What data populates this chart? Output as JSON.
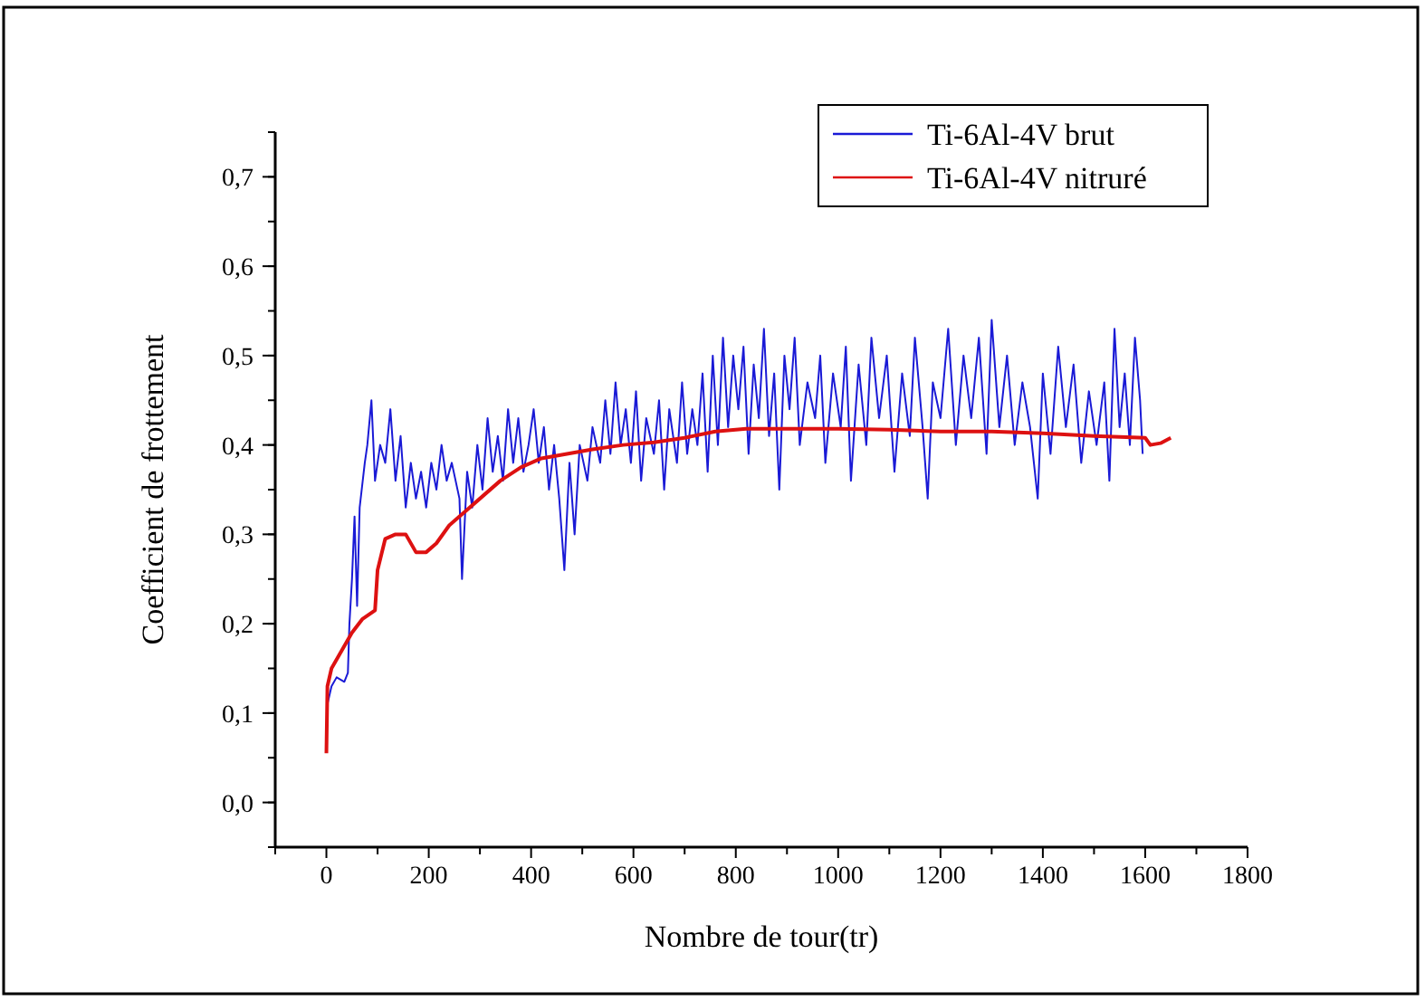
{
  "chart_data": {
    "type": "line",
    "xlabel": "Nombre de tour(tr)",
    "ylabel": "Coefficient de frottement",
    "xlim": [
      -100,
      1800
    ],
    "ylim": [
      -0.05,
      0.75
    ],
    "xticks": [
      {
        "value": -100,
        "label": null
      },
      0,
      {
        "value": 100,
        "label": null
      },
      200,
      {
        "value": 300,
        "label": null
      },
      400,
      {
        "value": 500,
        "label": null
      },
      600,
      {
        "value": 700,
        "label": null
      },
      800,
      {
        "value": 900,
        "label": null
      },
      1000,
      {
        "value": 1100,
        "label": null
      },
      1200,
      {
        "value": 1300,
        "label": null
      },
      1400,
      {
        "value": 1500,
        "label": null
      },
      1600,
      {
        "value": 1700,
        "label": null
      },
      1800
    ],
    "yticks": [
      {
        "value": 0,
        "label": "0,0"
      },
      {
        "value": 0.1,
        "label": "0,1"
      },
      {
        "value": 0.2,
        "label": "0,2"
      },
      {
        "value": 0.3,
        "label": "0,3"
      },
      {
        "value": 0.4,
        "label": "0,4"
      },
      {
        "value": 0.5,
        "label": "0,5"
      },
      {
        "value": 0.6,
        "label": "0,6"
      },
      {
        "value": 0.7,
        "label": "0,7"
      }
    ],
    "grid": false,
    "legend": "top right",
    "line_style": "solid",
    "marker": "none",
    "series": [
      {
        "name": "Ti-6Al-4V brut",
        "color": "#1a1ad6",
        "x": [
          2,
          10,
          20,
          35,
          42,
          45,
          50,
          55,
          60,
          65,
          75,
          80,
          88,
          95,
          105,
          115,
          125,
          135,
          145,
          155,
          165,
          175,
          185,
          195,
          205,
          215,
          225,
          235,
          245,
          260,
          265,
          275,
          285,
          295,
          305,
          315,
          325,
          335,
          345,
          355,
          365,
          375,
          385,
          395,
          405,
          415,
          425,
          435,
          445,
          455,
          465,
          475,
          485,
          495,
          510,
          520,
          535,
          545,
          555,
          565,
          575,
          585,
          595,
          605,
          615,
          625,
          640,
          650,
          660,
          670,
          685,
          695,
          705,
          715,
          725,
          735,
          745,
          755,
          765,
          775,
          785,
          795,
          805,
          815,
          825,
          835,
          845,
          855,
          865,
          875,
          885,
          895,
          905,
          915,
          925,
          940,
          955,
          965,
          975,
          990,
          1005,
          1015,
          1025,
          1040,
          1055,
          1065,
          1080,
          1095,
          1110,
          1125,
          1140,
          1150,
          1165,
          1175,
          1185,
          1200,
          1215,
          1230,
          1245,
          1260,
          1275,
          1290,
          1300,
          1315,
          1330,
          1345,
          1360,
          1375,
          1390,
          1400,
          1415,
          1430,
          1445,
          1460,
          1475,
          1490,
          1505,
          1520,
          1530,
          1540,
          1550,
          1560,
          1570,
          1580,
          1590,
          1595
        ],
        "values": [
          0.11,
          0.13,
          0.14,
          0.135,
          0.145,
          0.2,
          0.25,
          0.32,
          0.22,
          0.33,
          0.38,
          0.4,
          0.45,
          0.36,
          0.4,
          0.38,
          0.44,
          0.36,
          0.41,
          0.33,
          0.38,
          0.34,
          0.37,
          0.33,
          0.38,
          0.35,
          0.4,
          0.36,
          0.38,
          0.34,
          0.25,
          0.37,
          0.33,
          0.4,
          0.35,
          0.43,
          0.37,
          0.41,
          0.36,
          0.44,
          0.38,
          0.43,
          0.37,
          0.4,
          0.44,
          0.38,
          0.42,
          0.35,
          0.4,
          0.34,
          0.26,
          0.38,
          0.3,
          0.4,
          0.36,
          0.42,
          0.38,
          0.45,
          0.39,
          0.47,
          0.4,
          0.44,
          0.38,
          0.46,
          0.36,
          0.43,
          0.39,
          0.45,
          0.35,
          0.44,
          0.38,
          0.47,
          0.39,
          0.44,
          0.4,
          0.48,
          0.37,
          0.5,
          0.4,
          0.52,
          0.42,
          0.5,
          0.44,
          0.51,
          0.39,
          0.49,
          0.43,
          0.53,
          0.41,
          0.48,
          0.35,
          0.5,
          0.44,
          0.52,
          0.4,
          0.47,
          0.43,
          0.5,
          0.38,
          0.48,
          0.42,
          0.51,
          0.36,
          0.49,
          0.4,
          0.52,
          0.43,
          0.5,
          0.37,
          0.48,
          0.41,
          0.52,
          0.42,
          0.34,
          0.47,
          0.43,
          0.53,
          0.4,
          0.5,
          0.43,
          0.52,
          0.39,
          0.54,
          0.42,
          0.5,
          0.4,
          0.47,
          0.42,
          0.34,
          0.48,
          0.39,
          0.51,
          0.42,
          0.49,
          0.38,
          0.46,
          0.4,
          0.47,
          0.36,
          0.53,
          0.42,
          0.48,
          0.4,
          0.52,
          0.45,
          0.39
        ]
      },
      {
        "name": "Ti-6Al-4V nitruré",
        "color": "#dd1111",
        "x": [
          0,
          2,
          10,
          30,
          50,
          70,
          95,
          100,
          115,
          135,
          155,
          175,
          195,
          215,
          240,
          270,
          300,
          340,
          380,
          420,
          470,
          520,
          580,
          640,
          700,
          760,
          820,
          900,
          1000,
          1100,
          1200,
          1300,
          1400,
          1500,
          1600,
          1610,
          1630,
          1650
        ],
        "values": [
          0.055,
          0.13,
          0.15,
          0.17,
          0.19,
          0.205,
          0.215,
          0.26,
          0.295,
          0.3,
          0.3,
          0.28,
          0.28,
          0.29,
          0.31,
          0.325,
          0.34,
          0.36,
          0.375,
          0.385,
          0.39,
          0.395,
          0.4,
          0.403,
          0.408,
          0.415,
          0.418,
          0.418,
          0.418,
          0.417,
          0.415,
          0.415,
          0.413,
          0.41,
          0.408,
          0.4,
          0.402,
          0.408
        ]
      }
    ]
  }
}
